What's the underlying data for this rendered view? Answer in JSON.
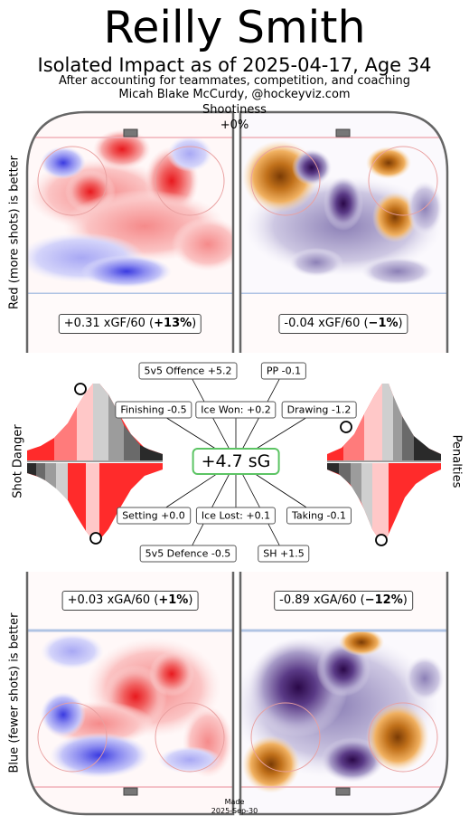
{
  "header": {
    "title": "Reilly Smith",
    "subtitle": "Isolated Impact as of 2025-04-17, Age 34",
    "caption_line1": "After accounting for teammates, competition, and coaching",
    "caption_line2": "Micah Blake McCurdy, @hockeyviz.com",
    "shootiness_label": "Shootiness",
    "shootiness_value": "+0%"
  },
  "side_labels": {
    "offence": "Red (more shots) is better",
    "shot_danger": "Shot Danger",
    "defence": "Blue (fewer shots) is better",
    "penalties": "Penalties"
  },
  "chart_data": {
    "type": "table",
    "offence": {
      "left_box": {
        "prefix": "+0.31 xGF/60 (",
        "bold": "+13%",
        "suffix": ")"
      },
      "right_box": {
        "prefix": "-0.04 xGF/60 (",
        "bold": "−1%",
        "suffix": ")"
      }
    },
    "defence": {
      "left_box": {
        "prefix": "+0.03 xGA/60 (",
        "bold": "+1%",
        "suffix": ")"
      },
      "right_box": {
        "prefix": "-0.89 xGA/60 (",
        "bold": "−12%",
        "suffix": ")"
      }
    },
    "total": "+4.7 sG",
    "components": [
      {
        "label": "5v5 Offence +5.2",
        "value": 5.2
      },
      {
        "label": "PP -0.1",
        "value": -0.1
      },
      {
        "label": "Finishing -0.5",
        "value": -0.5
      },
      {
        "label": "Ice Won: +0.2",
        "value": 0.2
      },
      {
        "label": "Drawing -1.2",
        "value": -1.2
      },
      {
        "label": "Setting +0.0",
        "value": 0.0
      },
      {
        "label": "Ice Lost: +0.1",
        "value": 0.1
      },
      {
        "label": "Taking -0.1",
        "value": -0.1
      },
      {
        "label": "5v5 Defence -0.5",
        "value": -0.5
      },
      {
        "label": "SH +1.5",
        "value": 1.5
      }
    ],
    "distributions": {
      "shot_danger_offence_percentile": 0.55,
      "shot_danger_defence_percentile": 0.55,
      "penalties_drawing_percentile": 0.6,
      "penalties_taking_percentile": 0.45
    }
  },
  "colors": {
    "good_offence": "#e8191e",
    "bad_offence": "#2b2bd8",
    "orange": "#b0620a",
    "purple": "#3a0f5e",
    "total_border": "#5cc464"
  },
  "footer": {
    "made_label": "Made",
    "made_date": "2025-Sep-30"
  }
}
